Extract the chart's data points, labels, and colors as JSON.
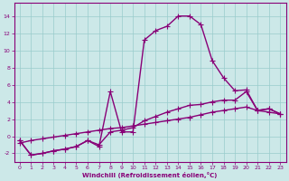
{
  "xlabel": "Windchill (Refroidissement éolien,°C)",
  "bg_color": "#cce8e8",
  "line_color": "#880077",
  "grid_color": "#99cccc",
  "xlim": [
    -0.5,
    23.5
  ],
  "ylim": [
    -3.0,
    15.5
  ],
  "yticks": [
    -2,
    0,
    2,
    4,
    6,
    8,
    10,
    12,
    14
  ],
  "xticks": [
    0,
    1,
    2,
    3,
    4,
    5,
    6,
    7,
    8,
    9,
    10,
    11,
    12,
    13,
    14,
    15,
    16,
    17,
    18,
    19,
    20,
    21,
    22,
    23
  ],
  "line1_x": [
    0,
    1,
    2,
    3,
    4,
    5,
    6,
    7,
    8,
    9,
    10,
    11,
    12,
    13,
    14,
    15,
    16,
    17,
    18,
    19,
    20,
    21,
    22,
    23
  ],
  "line1_y": [
    -0.5,
    -2.2,
    -2.0,
    -1.7,
    -1.5,
    -1.2,
    -0.5,
    -1.2,
    5.2,
    0.5,
    0.5,
    11.2,
    12.3,
    12.8,
    14.0,
    14.0,
    13.0,
    8.8,
    6.8,
    5.3,
    5.4,
    3.0,
    3.2,
    2.6
  ],
  "line2_x": [
    0,
    1,
    2,
    3,
    4,
    5,
    6,
    7,
    8,
    9,
    10,
    11,
    12,
    13,
    14,
    15,
    16,
    17,
    18,
    19,
    20,
    21,
    22,
    23
  ],
  "line2_y": [
    -0.5,
    -2.2,
    -2.0,
    -1.7,
    -1.5,
    -1.2,
    -0.5,
    -1.0,
    0.5,
    0.7,
    1.0,
    1.8,
    2.3,
    2.8,
    3.2,
    3.6,
    3.7,
    4.0,
    4.2,
    4.2,
    5.2,
    3.0,
    3.2,
    2.6
  ],
  "line3_x": [
    0,
    1,
    2,
    3,
    4,
    5,
    6,
    7,
    8,
    9,
    10,
    11,
    12,
    13,
    14,
    15,
    16,
    17,
    18,
    19,
    20,
    21,
    22,
    23
  ],
  "line3_y": [
    -0.8,
    -0.5,
    -0.3,
    -0.1,
    0.1,
    0.3,
    0.5,
    0.7,
    0.9,
    1.0,
    1.2,
    1.4,
    1.6,
    1.8,
    2.0,
    2.2,
    2.5,
    2.8,
    3.0,
    3.2,
    3.4,
    3.0,
    2.8,
    2.6
  ],
  "marker": "+",
  "markersize": 4,
  "linewidth": 1.0
}
